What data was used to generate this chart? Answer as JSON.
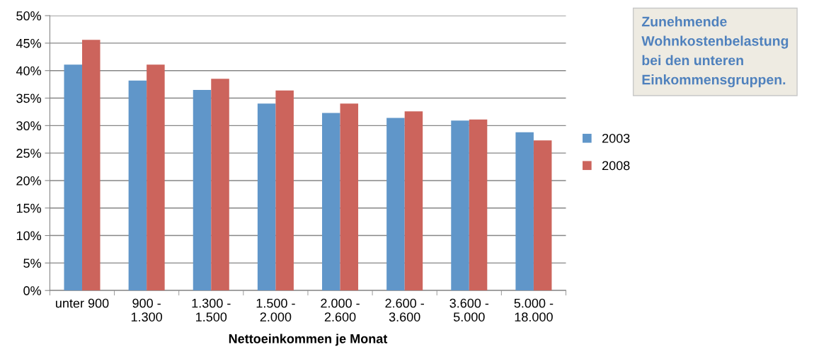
{
  "chart_data": {
    "type": "bar",
    "xlabel": "Nettoeinkommen je Monat",
    "categories": [
      "unter 900",
      "900 -\n1.300",
      "1.300 -\n1.500",
      "1.500 -\n2.000",
      "2.000 -\n2.600",
      "2.600 -\n3.600",
      "3.600 -\n5.000",
      "5.000 -\n18.000"
    ],
    "series": [
      {
        "name": "2003",
        "color": "#6096c9",
        "values": [
          41.1,
          38.2,
          36.5,
          34.0,
          32.3,
          31.4,
          30.9,
          28.8
        ]
      },
      {
        "name": "2008",
        "color": "#cc645c",
        "values": [
          45.6,
          41.1,
          38.5,
          36.4,
          34.0,
          32.6,
          31.1,
          27.3
        ]
      }
    ],
    "ylim": [
      0,
      50
    ],
    "yticks": [
      {
        "value": 0,
        "label": "0%"
      },
      {
        "value": 5,
        "label": "5%"
      },
      {
        "value": 10,
        "label": "10%"
      },
      {
        "value": 15,
        "label": "15%"
      },
      {
        "value": 20,
        "label": "20%"
      },
      {
        "value": 25,
        "label": "25%"
      },
      {
        "value": 30,
        "label": "30%"
      },
      {
        "value": 35,
        "label": "35%"
      },
      {
        "value": 40,
        "label": "40%"
      },
      {
        "value": 45,
        "label": "45%"
      },
      {
        "value": 50,
        "label": "50%"
      }
    ],
    "grid": "y",
    "legend": "right",
    "annotations": [
      "Zunehmende\nWohnkostenbelastung\nbei den unteren\nEinkommensgruppen."
    ]
  }
}
